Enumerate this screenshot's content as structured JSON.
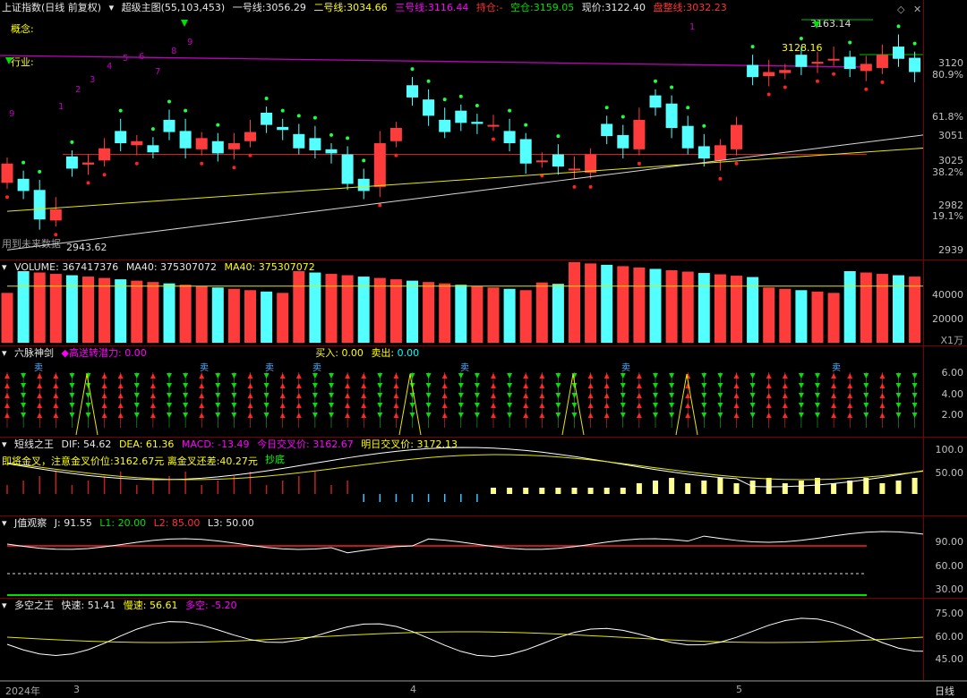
{
  "main": {
    "index_name": "上证指数",
    "period": "(日线 前复权)",
    "indicator": "超级主图(55,103,453)",
    "line1_label": "一号线:",
    "line1_value": "3056.29",
    "line2_label": "二号线:",
    "line2_value": "3034.66",
    "line3_label": "三号线:",
    "line3_value": "3116.44",
    "hold_label": "持仓:",
    "hold_value": "-",
    "empty_label": "空仓:",
    "empty_value": "3159.05",
    "price_label": "现价:",
    "price_value": "3122.40",
    "consolidation_label": "盘整线:",
    "consolidation_value": "3032.23",
    "concept_label": "概念:",
    "industry_label": "行业:",
    "future_label": "用到未来数据",
    "low_label": "2943.62",
    "high_label": "3163.14",
    "mid_label": "3128.16",
    "wave_numbers": [
      "9",
      "1",
      "2",
      "3",
      "4",
      "5",
      "6",
      "7",
      "8",
      "9",
      "1"
    ],
    "y_axis": [
      "3120",
      "80.9%",
      "61.8%",
      "3051",
      "3025",
      "38.2%",
      "2982",
      "19.1%",
      "2939"
    ],
    "closes": [
      3025,
      2998,
      2970,
      2980,
      3020,
      3026,
      3040,
      3045,
      3047,
      3036,
      3056,
      3040,
      3050,
      3035,
      3045,
      3056,
      3063,
      3058,
      3040,
      3038,
      3035,
      3005,
      2998,
      3045,
      3060,
      3090,
      3072,
      3056,
      3065,
      3064,
      3063,
      3045,
      3025,
      3028,
      3022,
      3020,
      3034,
      3052,
      3040,
      3068,
      3080,
      3060,
      3040,
      3030,
      3043,
      3063,
      3110,
      3115,
      3117,
      3120,
      3125,
      3128,
      3118,
      3123,
      3132,
      3128,
      3115,
      3122
    ]
  },
  "volume": {
    "title": "VOLUME:",
    "value": "367417376",
    "ma_label": "MA40:",
    "ma_value": "375307072",
    "ma2_label": "MA40:",
    "ma2_value": "375307072",
    "y_axis": [
      "40000",
      "20000"
    ],
    "unit": "X1万"
  },
  "liumai": {
    "title": "六脉神剑",
    "potential_label": "高送转潜力:",
    "potential_value": "0.00",
    "buy_label": "买入:",
    "buy_value": "0.00",
    "sell_label": "卖出:",
    "sell_value": "0.00",
    "sell_mark": "卖",
    "y_axis": [
      "6.00",
      "4.00",
      "2.00"
    ]
  },
  "short": {
    "title": "短线之王",
    "dif_label": "DIF:",
    "dif_value": "54.62",
    "dea_label": "DEA:",
    "dea_value": "61.36",
    "macd_label": "MACD:",
    "macd_value": "-13.49",
    "today_label": "今日交叉价:",
    "today_value": "3162.67",
    "tomorrow_label": "明日交叉价:",
    "tomorrow_value": "3172.13",
    "subline": "即将金叉，注意金叉价位:3162.67元  离金叉还差:40.27元",
    "dip_label": "抄底",
    "y_axis": [
      "100.0",
      "50.00"
    ]
  },
  "jval": {
    "title": "J值观察",
    "j_label": "J:",
    "j_value": "91.55",
    "l1_label": "L1:",
    "l1_value": "20.00",
    "l2_label": "L2:",
    "l2_value": "85.00",
    "l3_label": "L3:",
    "l3_value": "50.00",
    "y_axis": [
      "90.00",
      "60.00",
      "30.00"
    ]
  },
  "duokong": {
    "title": "多空之王",
    "fast_label": "快速:",
    "fast_value": "51.41",
    "slow_label": "慢速:",
    "slow_value": "56.61",
    "dk_label": "多空:",
    "dk_value": "-5.20",
    "y_axis": [
      "75.00",
      "60.00",
      "45.00"
    ]
  },
  "bottom": {
    "year": "2024年",
    "m3": "3",
    "m4": "4",
    "m5": "5",
    "period_tab": "日线"
  },
  "colors": {
    "up": "#ff3c3c",
    "down": "#54ffff",
    "ma_yellow": "#e6e600",
    "ma_white": "#d8d8d8",
    "magenta": "#c000c0"
  }
}
